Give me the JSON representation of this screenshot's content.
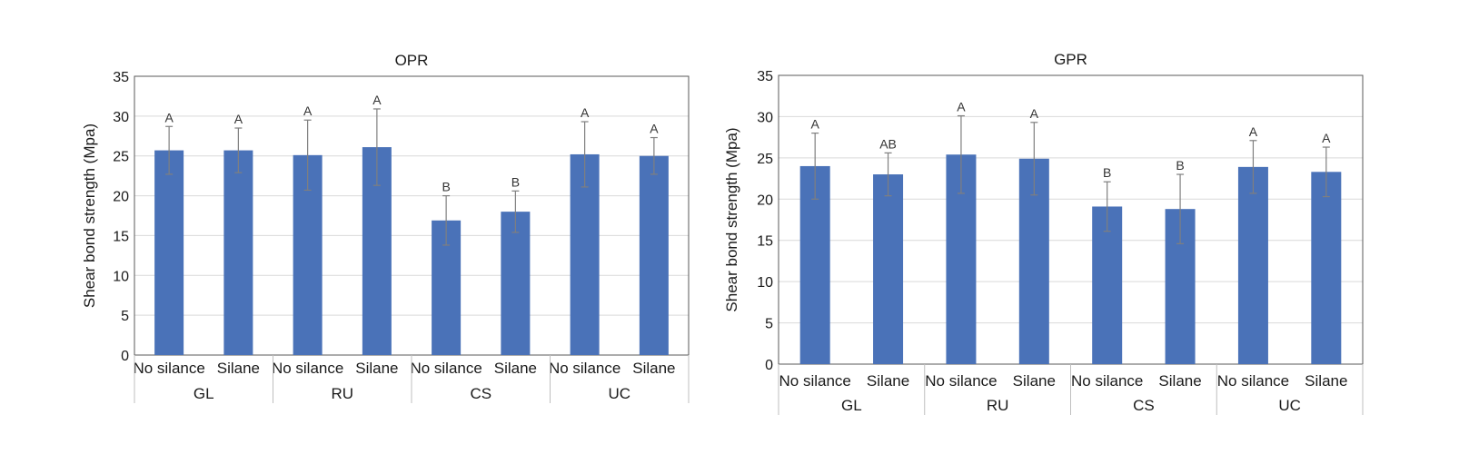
{
  "chart_data": [
    {
      "type": "bar",
      "title": "OPR",
      "ylabel": "Shear bond strength (Mpa)",
      "ylim": [
        0,
        35
      ],
      "yticks": [
        0,
        5,
        10,
        15,
        20,
        25,
        30,
        35
      ],
      "grid": true,
      "groups": [
        "GL",
        "RU",
        "CS",
        "UC"
      ],
      "categories": [
        "No silance",
        "Silane",
        "No silance",
        "Silane",
        "No silance",
        "Silane",
        "No silance",
        "Silane"
      ],
      "values": [
        25.7,
        25.7,
        25.1,
        26.1,
        16.9,
        18.0,
        25.2,
        25.0
      ],
      "errors": [
        3.0,
        2.8,
        4.4,
        4.8,
        3.1,
        2.6,
        4.1,
        2.3
      ],
      "labels": [
        "A",
        "A",
        "A",
        "A",
        "B",
        "B",
        "A",
        "A"
      ],
      "bar_color": "#4a72b8"
    },
    {
      "type": "bar",
      "title": "GPR",
      "ylabel": "Shear bond strength (Mpa)",
      "ylim": [
        0,
        35
      ],
      "yticks": [
        0,
        5,
        10,
        15,
        20,
        25,
        30,
        35
      ],
      "grid": true,
      "groups": [
        "GL",
        "RU",
        "CS",
        "UC"
      ],
      "categories": [
        "No silance",
        "Silane",
        "No silance",
        "Silane",
        "No silance",
        "Silane",
        "No silance",
        "Silane"
      ],
      "values": [
        24.0,
        23.0,
        25.4,
        24.9,
        19.1,
        18.8,
        23.9,
        23.3
      ],
      "errors": [
        4.0,
        2.6,
        4.7,
        4.4,
        3.0,
        4.2,
        3.2,
        3.0
      ],
      "labels": [
        "A",
        "AB",
        "A",
        "A",
        "B",
        "B",
        "A",
        "A"
      ],
      "bar_color": "#4a72b8"
    }
  ]
}
